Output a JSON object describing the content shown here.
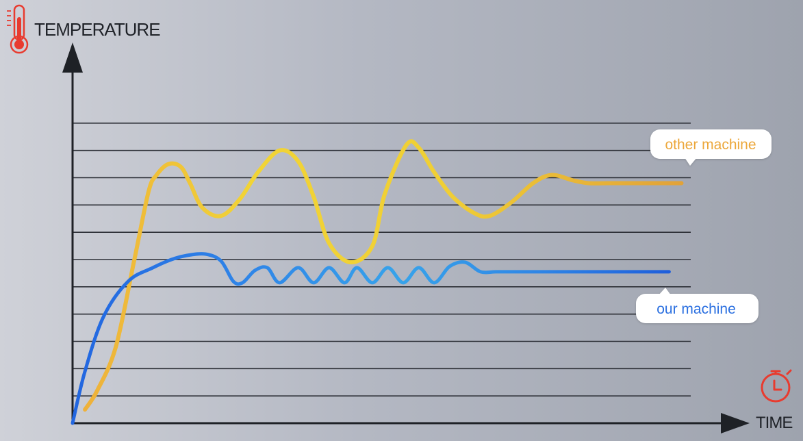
{
  "chart_data": {
    "type": "line",
    "ylabel": "TEMPERATURE",
    "xlabel": "TIME",
    "grid": true,
    "xlim": [
      0,
      100
    ],
    "ylim": [
      0,
      12
    ],
    "gridlines": [
      1,
      2,
      3,
      4,
      5,
      6,
      7,
      8,
      9,
      10,
      11
    ],
    "series": [
      {
        "name": "other machine",
        "color": "#f1c232",
        "end_color": "#e3a035",
        "x": [
          2,
          4,
          7,
          10,
          12.3,
          13.6,
          15.5,
          17.5,
          19,
          21,
          24,
          27,
          30,
          33.5,
          36.5,
          39,
          41.5,
          45,
          48.5,
          50.5,
          54,
          56,
          58.5,
          61.5,
          65,
          67.5,
          71,
          74.5,
          77.5,
          81,
          83.5,
          86.5,
          88,
          90,
          92,
          98.5
        ],
        "y": [
          0.5,
          1.2,
          2.8,
          6.0,
          8.5,
          9.1,
          9.5,
          9.4,
          8.8,
          7.9,
          7.6,
          8.2,
          9.2,
          10.0,
          9.6,
          8.3,
          6.6,
          5.9,
          6.5,
          8.4,
          10.2,
          10.1,
          9.2,
          8.3,
          7.7,
          7.6,
          8.1,
          8.8,
          9.1,
          8.9,
          8.8,
          8.8,
          8.8,
          8.8,
          8.8,
          8.8
        ]
      },
      {
        "name": "our machine",
        "color": "#2a6fe0",
        "end_color": "#1f5fdc",
        "x": [
          0,
          2,
          5,
          9,
          13,
          16,
          18.5,
          21.5,
          24,
          26,
          27.5,
          29.5,
          31.5,
          33.5,
          36.5,
          39,
          41.5,
          44,
          46,
          48.5,
          51,
          53.5,
          56,
          58.5,
          61,
          63.5,
          66,
          68.5,
          71,
          72.5,
          74.5,
          76,
          80,
          84,
          88,
          92,
          96.5
        ],
        "y": [
          0,
          1.9,
          3.9,
          5.2,
          5.7,
          6.0,
          6.15,
          6.2,
          5.95,
          5.2,
          5.15,
          5.6,
          5.7,
          5.15,
          5.7,
          5.15,
          5.7,
          5.15,
          5.7,
          5.15,
          5.7,
          5.15,
          5.7,
          5.15,
          5.75,
          5.9,
          5.55,
          5.55,
          5.55,
          5.55,
          5.55,
          5.55,
          5.55,
          5.55,
          5.55,
          5.55,
          5.55
        ]
      }
    ]
  },
  "icons": {
    "temperature": "thermometer-icon",
    "time": "stopwatch-icon",
    "accent": "#e83b2f"
  }
}
